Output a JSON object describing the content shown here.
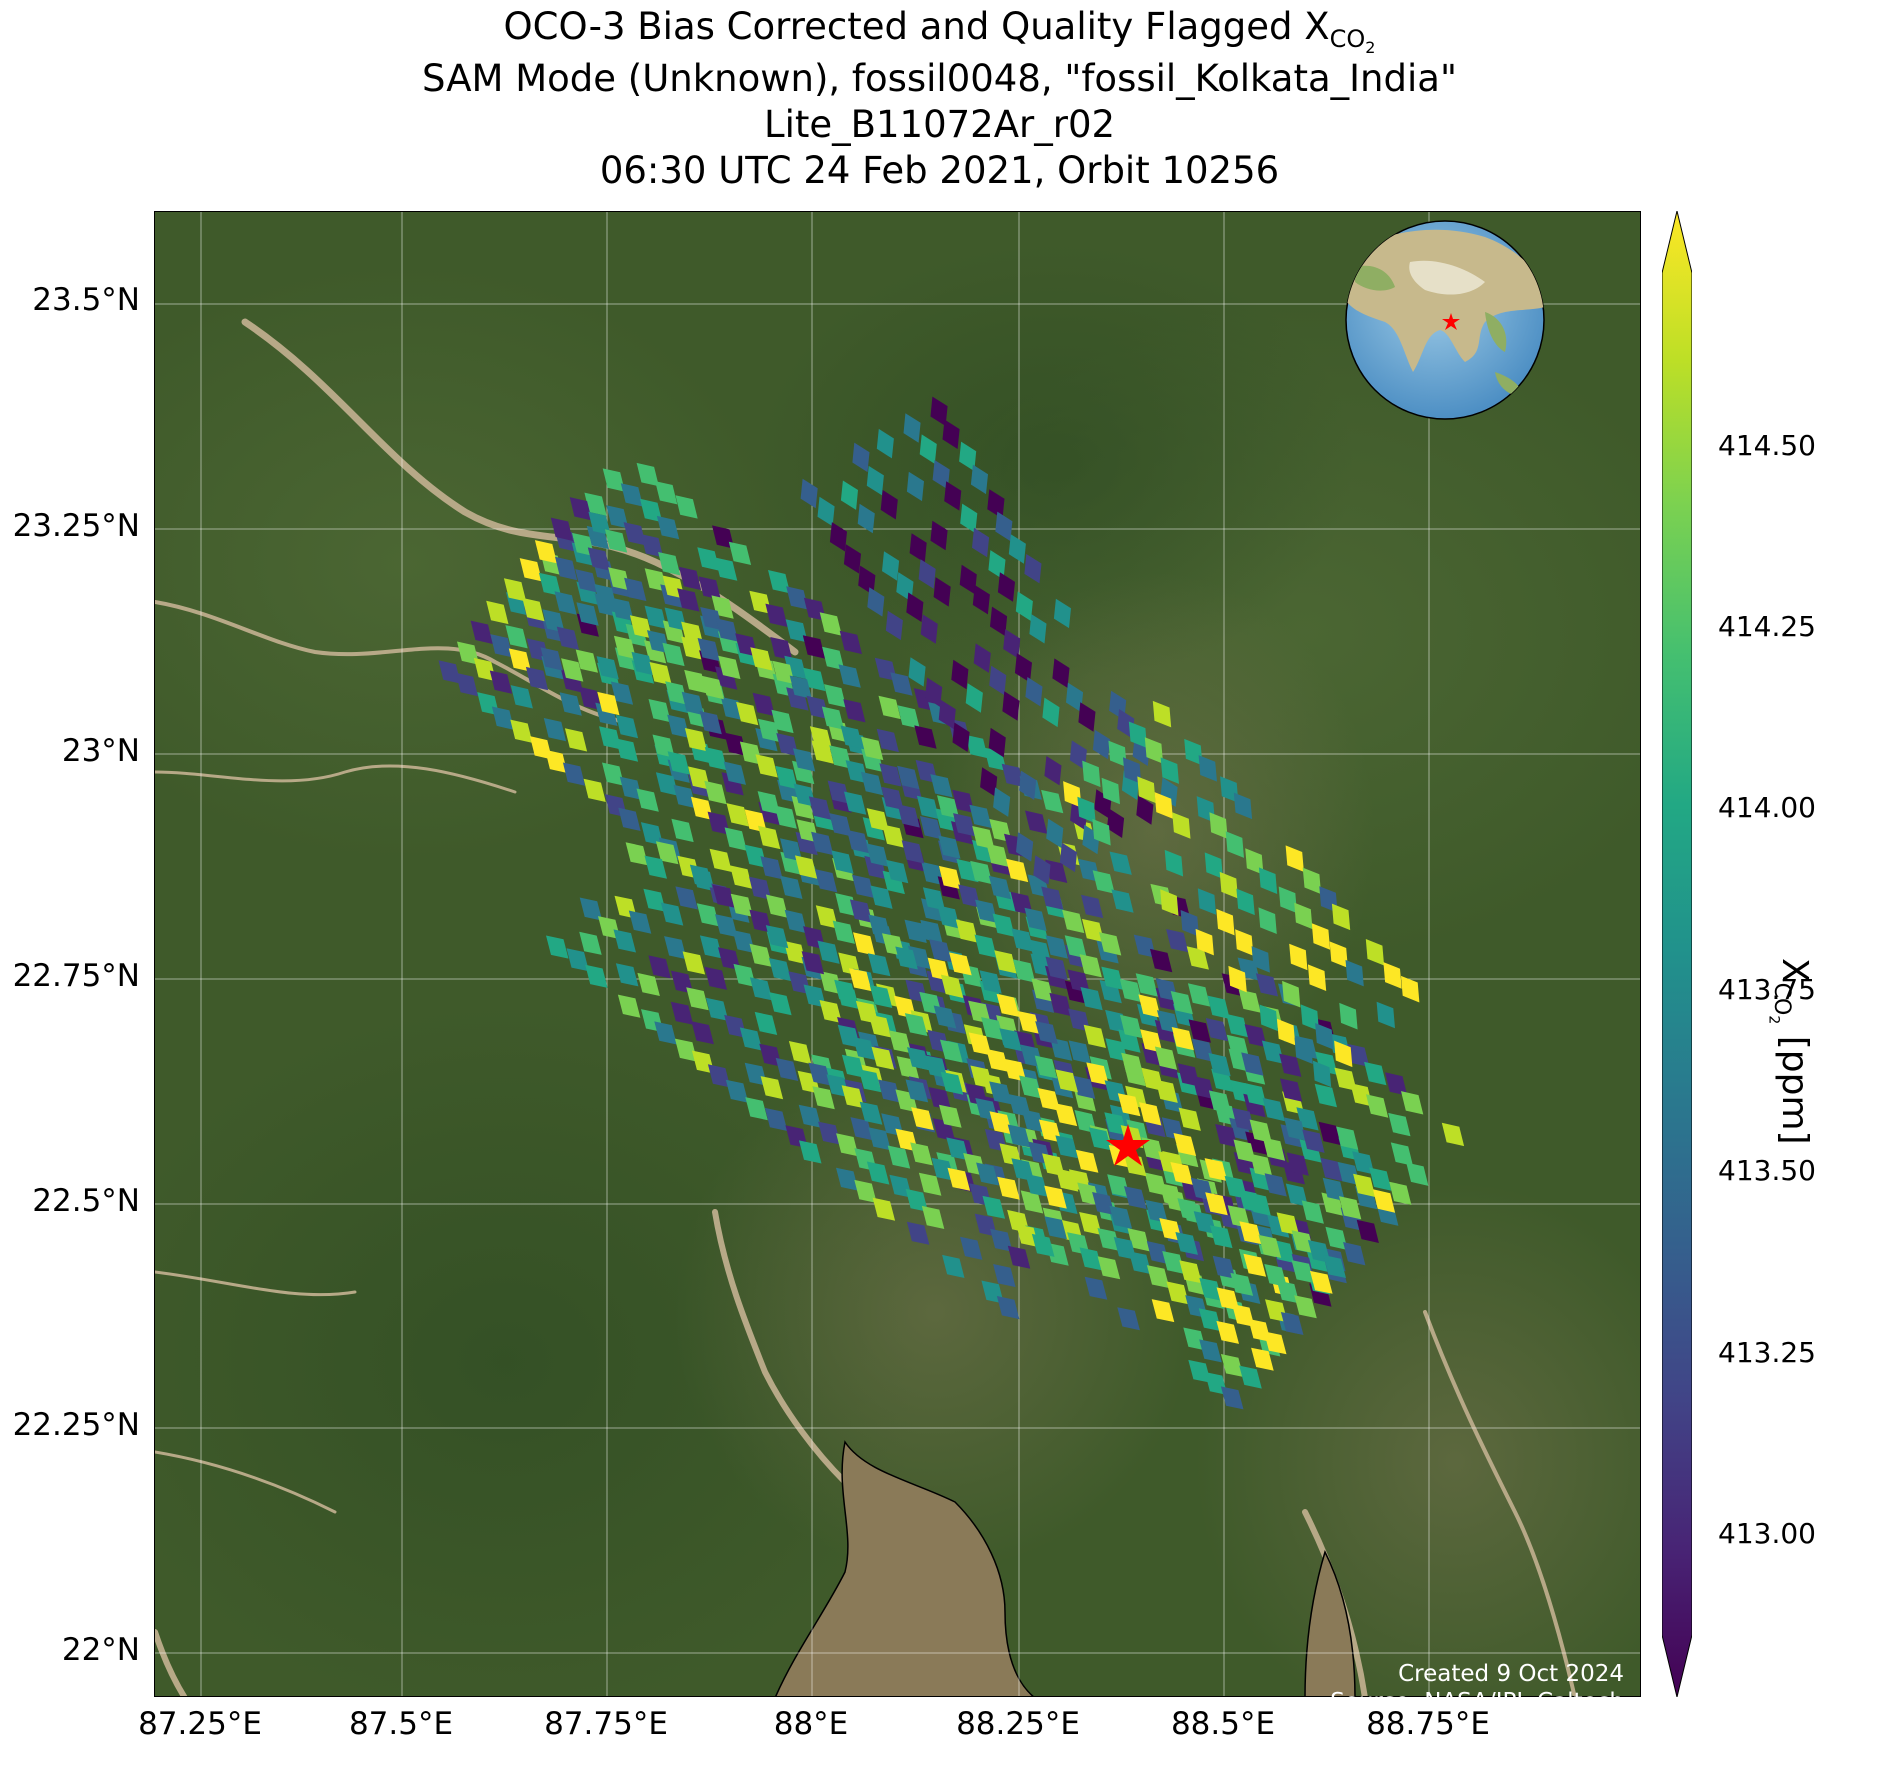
{
  "title": {
    "line1_prefix": "OCO-3 Bias Corrected and Quality Flagged X",
    "line1_sub": "CO",
    "line1_sub2": "2",
    "line2": "SAM Mode (Unknown), fossil0048, \"fossil_Kolkata_India\"",
    "line3": "Lite_B11072Ar_r02",
    "line4": "06:30 UTC 24 Feb 2021, Orbit 10256"
  },
  "map": {
    "lat_labels": [
      "23.5°N",
      "23.25°N",
      "23°N",
      "22.75°N",
      "22.5°N",
      "22.25°N",
      "22°N"
    ],
    "lon_labels": [
      "87.25°E",
      "87.5°E",
      "87.75°E",
      "88°E",
      "88.25°E",
      "88.5°E",
      "88.75°E"
    ],
    "lat_range": [
      21.87,
      23.6
    ],
    "lon_range": [
      87.07,
      88.98
    ],
    "grid": true,
    "basemap": "satellite imagery",
    "target_marker": {
      "lat": 22.57,
      "lon": 88.36,
      "symbol": "red-star"
    },
    "inset_globe": {
      "position": "top-right",
      "marker": "red-star"
    },
    "colors": {
      "land": "#3f5a2a",
      "river": "#8a7a58",
      "marker": "#ff0000"
    }
  },
  "colorbar": {
    "ticks": [
      "414.50",
      "414.25",
      "414.00",
      "413.75",
      "413.50",
      "413.25",
      "413.00"
    ],
    "range": [
      412.83,
      414.72
    ],
    "colormap": "viridis",
    "label_prefix": "X",
    "label_sub": "CO",
    "label_sub2": "2",
    "label_suffix": " [ppm]"
  },
  "credit": {
    "line1": "Created 9 Oct 2024",
    "line2": "Source: NASA/JPL-Caltech"
  }
}
